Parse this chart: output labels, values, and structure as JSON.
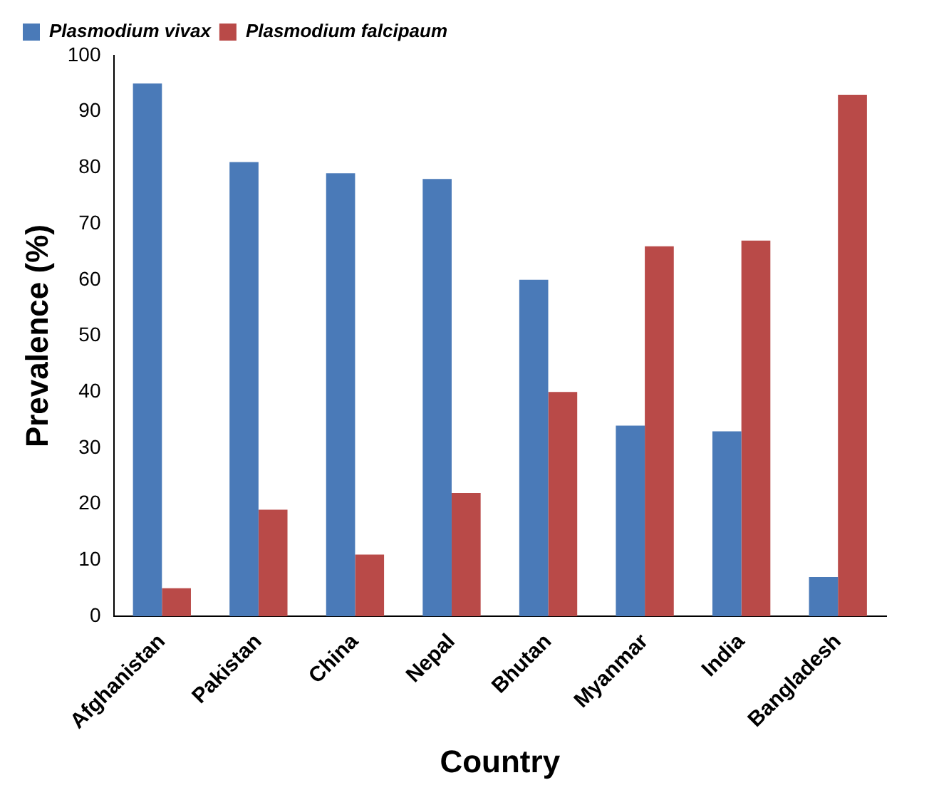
{
  "chart_data": {
    "type": "bar",
    "xlabel": "Country",
    "ylabel": "Prevalence (%)",
    "categories": [
      "Afghanistan",
      "Pakistan",
      "China",
      "Nepal",
      "Bhutan",
      "Myanmar",
      "India",
      "Bangladesh"
    ],
    "series": [
      {
        "name": "Plasmodium vivax",
        "color": "#4a7ab8",
        "values": [
          95,
          81,
          79,
          78,
          60,
          34,
          33,
          7
        ]
      },
      {
        "name": "Plasmodium falcipaum",
        "color": "#b94a48",
        "values": [
          5,
          19,
          11,
          22,
          40,
          66,
          67,
          93
        ]
      }
    ],
    "ylim": [
      0,
      100
    ],
    "yticks": [
      0,
      10,
      20,
      30,
      40,
      50,
      60,
      70,
      80,
      90,
      100
    ],
    "grid": false,
    "legend": "top left"
  }
}
